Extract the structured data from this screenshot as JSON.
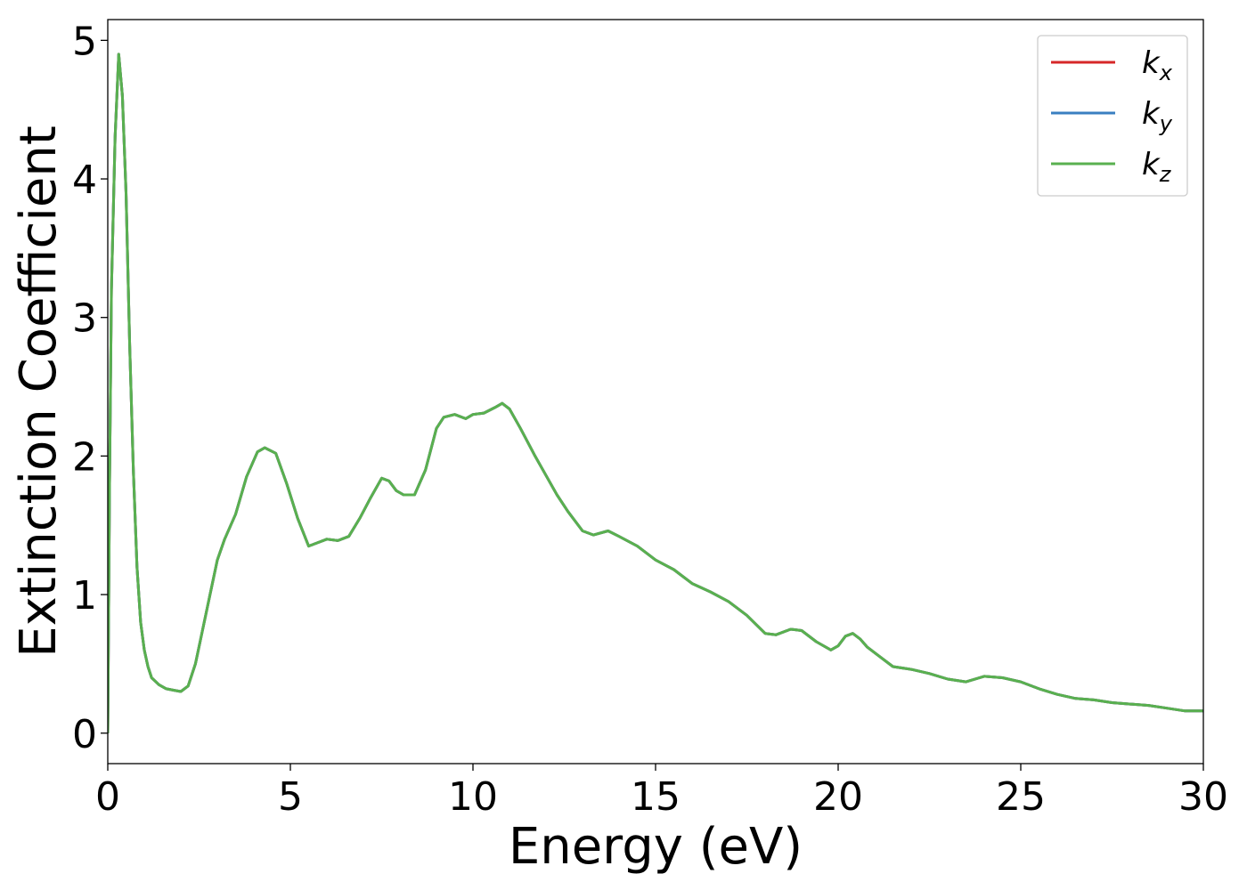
{
  "chart_data": {
    "type": "line",
    "xlabel": "Energy (eV)",
    "ylabel": "Extinction Coefficient",
    "xlim": [
      0,
      30
    ],
    "ylim": [
      -0.22,
      5.15
    ],
    "xticks": [
      0,
      5,
      10,
      15,
      20,
      25,
      30
    ],
    "yticks": [
      0,
      1,
      2,
      3,
      4,
      5
    ],
    "grid": false,
    "legend_position": "top-right",
    "series": [
      {
        "name": "k",
        "subscript": "x",
        "color": "#d62728",
        "x": [
          0,
          0.05,
          0.1,
          0.2,
          0.3,
          0.4,
          0.5,
          0.6,
          0.7,
          0.8,
          0.9,
          1.0,
          1.1,
          1.2,
          1.4,
          1.6,
          1.8,
          2.0,
          2.2,
          2.4,
          2.6,
          2.8,
          3.0,
          3.2,
          3.5,
          3.8,
          4.1,
          4.3,
          4.6,
          4.9,
          5.2,
          5.5,
          5.7,
          6.0,
          6.3,
          6.6,
          6.9,
          7.2,
          7.5,
          7.7,
          7.9,
          8.1,
          8.4,
          8.7,
          9.0,
          9.2,
          9.5,
          9.8,
          10.0,
          10.3,
          10.6,
          10.8,
          11.0,
          11.3,
          11.7,
          12.0,
          12.3,
          12.6,
          13.0,
          13.3,
          13.7,
          14.0,
          14.5,
          15.0,
          15.5,
          16.0,
          16.5,
          17.0,
          17.5,
          18.0,
          18.3,
          18.7,
          19.0,
          19.4,
          19.8,
          20.0,
          20.2,
          20.4,
          20.6,
          20.8,
          21.1,
          21.5,
          22.0,
          22.5,
          23.0,
          23.5,
          24.0,
          24.5,
          25.0,
          25.5,
          26.0,
          26.5,
          27.0,
          27.5,
          28.0,
          28.5,
          29.0,
          29.5,
          30.0
        ],
        "values": [
          0,
          1.8,
          3.2,
          4.3,
          4.9,
          4.6,
          3.9,
          2.8,
          1.9,
          1.2,
          0.8,
          0.6,
          0.48,
          0.4,
          0.35,
          0.32,
          0.31,
          0.3,
          0.34,
          0.5,
          0.75,
          1.0,
          1.25,
          1.4,
          1.58,
          1.85,
          2.03,
          2.06,
          2.02,
          1.8,
          1.55,
          1.35,
          1.37,
          1.4,
          1.39,
          1.42,
          1.55,
          1.7,
          1.84,
          1.82,
          1.75,
          1.72,
          1.72,
          1.9,
          2.2,
          2.28,
          2.3,
          2.27,
          2.3,
          2.31,
          2.35,
          2.38,
          2.34,
          2.2,
          2.0,
          1.86,
          1.72,
          1.6,
          1.46,
          1.43,
          1.46,
          1.42,
          1.35,
          1.25,
          1.18,
          1.08,
          1.02,
          0.95,
          0.85,
          0.72,
          0.71,
          0.75,
          0.74,
          0.66,
          0.6,
          0.63,
          0.7,
          0.72,
          0.68,
          0.62,
          0.56,
          0.48,
          0.46,
          0.43,
          0.39,
          0.37,
          0.41,
          0.4,
          0.37,
          0.32,
          0.28,
          0.25,
          0.24,
          0.22,
          0.21,
          0.2,
          0.18,
          0.16,
          0.16
        ]
      },
      {
        "name": "k",
        "subscript": "y",
        "color": "#3a7fc1",
        "x": [
          0,
          0.05,
          0.1,
          0.2,
          0.3,
          0.4,
          0.5,
          0.6,
          0.7,
          0.8,
          0.9,
          1.0,
          1.1,
          1.2,
          1.4,
          1.6,
          1.8,
          2.0,
          2.2,
          2.4,
          2.6,
          2.8,
          3.0,
          3.2,
          3.5,
          3.8,
          4.1,
          4.3,
          4.6,
          4.9,
          5.2,
          5.5,
          5.7,
          6.0,
          6.3,
          6.6,
          6.9,
          7.2,
          7.5,
          7.7,
          7.9,
          8.1,
          8.4,
          8.7,
          9.0,
          9.2,
          9.5,
          9.8,
          10.0,
          10.3,
          10.6,
          10.8,
          11.0,
          11.3,
          11.7,
          12.0,
          12.3,
          12.6,
          13.0,
          13.3,
          13.7,
          14.0,
          14.5,
          15.0,
          15.5,
          16.0,
          16.5,
          17.0,
          17.5,
          18.0,
          18.3,
          18.7,
          19.0,
          19.4,
          19.8,
          20.0,
          20.2,
          20.4,
          20.6,
          20.8,
          21.1,
          21.5,
          22.0,
          22.5,
          23.0,
          23.5,
          24.0,
          24.5,
          25.0,
          25.5,
          26.0,
          26.5,
          27.0,
          27.5,
          28.0,
          28.5,
          29.0,
          29.5,
          30.0
        ],
        "values": [
          0,
          1.8,
          3.2,
          4.3,
          4.9,
          4.6,
          3.9,
          2.8,
          1.9,
          1.2,
          0.8,
          0.6,
          0.48,
          0.4,
          0.35,
          0.32,
          0.31,
          0.3,
          0.34,
          0.5,
          0.75,
          1.0,
          1.25,
          1.4,
          1.58,
          1.85,
          2.03,
          2.06,
          2.02,
          1.8,
          1.55,
          1.35,
          1.37,
          1.4,
          1.39,
          1.42,
          1.55,
          1.7,
          1.84,
          1.82,
          1.75,
          1.72,
          1.72,
          1.9,
          2.2,
          2.28,
          2.3,
          2.27,
          2.3,
          2.31,
          2.35,
          2.38,
          2.34,
          2.2,
          2.0,
          1.86,
          1.72,
          1.6,
          1.46,
          1.43,
          1.46,
          1.42,
          1.35,
          1.25,
          1.18,
          1.08,
          1.02,
          0.95,
          0.85,
          0.72,
          0.71,
          0.75,
          0.74,
          0.66,
          0.6,
          0.63,
          0.7,
          0.72,
          0.68,
          0.62,
          0.56,
          0.48,
          0.46,
          0.43,
          0.39,
          0.37,
          0.41,
          0.4,
          0.37,
          0.32,
          0.28,
          0.25,
          0.24,
          0.22,
          0.21,
          0.2,
          0.18,
          0.16,
          0.16
        ]
      },
      {
        "name": "k",
        "subscript": "z",
        "color": "#59b04f",
        "x": [
          0,
          0.05,
          0.1,
          0.2,
          0.3,
          0.4,
          0.5,
          0.6,
          0.7,
          0.8,
          0.9,
          1.0,
          1.1,
          1.2,
          1.4,
          1.6,
          1.8,
          2.0,
          2.2,
          2.4,
          2.6,
          2.8,
          3.0,
          3.2,
          3.5,
          3.8,
          4.1,
          4.3,
          4.6,
          4.9,
          5.2,
          5.5,
          5.7,
          6.0,
          6.3,
          6.6,
          6.9,
          7.2,
          7.5,
          7.7,
          7.9,
          8.1,
          8.4,
          8.7,
          9.0,
          9.2,
          9.5,
          9.8,
          10.0,
          10.3,
          10.6,
          10.8,
          11.0,
          11.3,
          11.7,
          12.0,
          12.3,
          12.6,
          13.0,
          13.3,
          13.7,
          14.0,
          14.5,
          15.0,
          15.5,
          16.0,
          16.5,
          17.0,
          17.5,
          18.0,
          18.3,
          18.7,
          19.0,
          19.4,
          19.8,
          20.0,
          20.2,
          20.4,
          20.6,
          20.8,
          21.1,
          21.5,
          22.0,
          22.5,
          23.0,
          23.5,
          24.0,
          24.5,
          25.0,
          25.5,
          26.0,
          26.5,
          27.0,
          27.5,
          28.0,
          28.5,
          29.0,
          29.5,
          30.0
        ],
        "values": [
          0,
          1.8,
          3.2,
          4.3,
          4.9,
          4.6,
          3.9,
          2.8,
          1.9,
          1.2,
          0.8,
          0.6,
          0.48,
          0.4,
          0.35,
          0.32,
          0.31,
          0.3,
          0.34,
          0.5,
          0.75,
          1.0,
          1.25,
          1.4,
          1.58,
          1.85,
          2.03,
          2.06,
          2.02,
          1.8,
          1.55,
          1.35,
          1.37,
          1.4,
          1.39,
          1.42,
          1.55,
          1.7,
          1.84,
          1.82,
          1.75,
          1.72,
          1.72,
          1.9,
          2.2,
          2.28,
          2.3,
          2.27,
          2.3,
          2.31,
          2.35,
          2.38,
          2.34,
          2.2,
          2.0,
          1.86,
          1.72,
          1.6,
          1.46,
          1.43,
          1.46,
          1.42,
          1.35,
          1.25,
          1.18,
          1.08,
          1.02,
          0.95,
          0.85,
          0.72,
          0.71,
          0.75,
          0.74,
          0.66,
          0.6,
          0.63,
          0.7,
          0.72,
          0.68,
          0.62,
          0.56,
          0.48,
          0.46,
          0.43,
          0.39,
          0.37,
          0.41,
          0.4,
          0.37,
          0.32,
          0.28,
          0.25,
          0.24,
          0.22,
          0.21,
          0.2,
          0.18,
          0.16,
          0.16
        ]
      }
    ]
  }
}
